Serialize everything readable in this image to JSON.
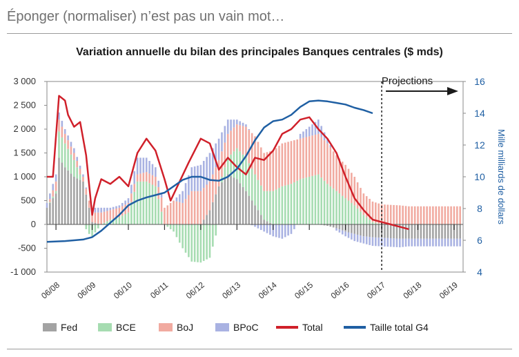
{
  "page": {
    "heading": "Éponger (normaliser) n’est pas un vain mot…"
  },
  "chart_data": {
    "type": "bar",
    "title": "Variation annuelle du bilan des principales Banques centrales ($ mds)",
    "annotation": "Projections",
    "x_ticks": [
      "06/08",
      "06/09",
      "06/10",
      "06/11",
      "06/12",
      "06/13",
      "06/14",
      "06/15",
      "06/16",
      "06/17",
      "06/18",
      "06/19"
    ],
    "y_left": {
      "ticks": [
        "3 000",
        "2 500",
        "2 000",
        "1 500",
        "1 000",
        "500",
        "0",
        "-500",
        "-1 000"
      ],
      "range": [
        -1000,
        3000
      ]
    },
    "y_right": {
      "label": "Mille milliards de dollars",
      "ticks": [
        "16",
        "14",
        "12",
        "10",
        "8",
        "6",
        "4"
      ],
      "range": [
        4,
        16
      ]
    },
    "projection_start": "06/17",
    "colors": {
      "Fed": "#a3a3a3",
      "BCE": "#a6dcb1",
      "BoJ": "#f1aaa0",
      "BPoC": "#a9b2e2",
      "Total": "#d0202a",
      "Taille total G4": "#1f5fa3"
    },
    "series": [
      {
        "name": "Fed",
        "kind": "bar",
        "points": [
          [
            0,
            350
          ],
          [
            3,
            650
          ],
          [
            4,
            1400
          ],
          [
            6,
            1200
          ],
          [
            9,
            1000
          ],
          [
            12,
            900
          ],
          [
            14,
            350
          ],
          [
            15,
            50
          ],
          [
            18,
            0
          ],
          [
            21,
            0
          ],
          [
            24,
            0
          ],
          [
            27,
            -10
          ],
          [
            30,
            0
          ],
          [
            33,
            0
          ],
          [
            36,
            0
          ],
          [
            39,
            0
          ],
          [
            42,
            0
          ],
          [
            45,
            0
          ],
          [
            48,
            0
          ],
          [
            51,
            0
          ],
          [
            54,
            300
          ],
          [
            57,
            800
          ],
          [
            60,
            1050
          ],
          [
            63,
            950
          ],
          [
            66,
            700
          ],
          [
            69,
            400
          ],
          [
            72,
            100
          ],
          [
            75,
            0
          ],
          [
            78,
            0
          ],
          [
            81,
            0
          ],
          [
            84,
            0
          ],
          [
            87,
            0
          ],
          [
            90,
            0
          ],
          [
            93,
            -30
          ],
          [
            96,
            -80
          ],
          [
            99,
            -150
          ],
          [
            102,
            -200
          ],
          [
            105,
            -250
          ],
          [
            108,
            -270
          ],
          [
            111,
            -280
          ],
          [
            114,
            -290
          ],
          [
            117,
            -300
          ],
          [
            120,
            -300
          ]
        ]
      },
      {
        "name": "BCE",
        "kind": "bar",
        "points": [
          [
            0,
            0
          ],
          [
            3,
            50
          ],
          [
            4,
            550
          ],
          [
            6,
            500
          ],
          [
            9,
            350
          ],
          [
            12,
            0
          ],
          [
            14,
            -200
          ],
          [
            15,
            -250
          ],
          [
            18,
            0
          ],
          [
            21,
            100
          ],
          [
            24,
            150
          ],
          [
            27,
            250
          ],
          [
            30,
            900
          ],
          [
            33,
            900
          ],
          [
            36,
            800
          ],
          [
            39,
            0
          ],
          [
            42,
            -150
          ],
          [
            45,
            -500
          ],
          [
            48,
            -780
          ],
          [
            51,
            -800
          ],
          [
            54,
            -700
          ],
          [
            57,
            0
          ],
          [
            60,
            350
          ],
          [
            63,
            650
          ],
          [
            66,
            700
          ],
          [
            69,
            650
          ],
          [
            72,
            600
          ],
          [
            75,
            700
          ],
          [
            78,
            800
          ],
          [
            81,
            850
          ],
          [
            84,
            950
          ],
          [
            87,
            1000
          ],
          [
            90,
            1050
          ],
          [
            93,
            850
          ],
          [
            96,
            700
          ],
          [
            99,
            550
          ],
          [
            102,
            400
          ],
          [
            105,
            200
          ],
          [
            108,
            50
          ],
          [
            111,
            0
          ],
          [
            114,
            0
          ],
          [
            117,
            0
          ],
          [
            120,
            0
          ]
        ]
      },
      {
        "name": "BoJ",
        "kind": "bar",
        "points": [
          [
            0,
            0
          ],
          [
            3,
            200
          ],
          [
            4,
            250
          ],
          [
            6,
            200
          ],
          [
            9,
            150
          ],
          [
            12,
            100
          ],
          [
            14,
            150
          ],
          [
            15,
            200
          ],
          [
            18,
            250
          ],
          [
            21,
            200
          ],
          [
            24,
            200
          ],
          [
            27,
            200
          ],
          [
            30,
            150
          ],
          [
            33,
            200
          ],
          [
            36,
            200
          ],
          [
            39,
            350
          ],
          [
            42,
            500
          ],
          [
            45,
            450
          ],
          [
            48,
            700
          ],
          [
            51,
            700
          ],
          [
            54,
            600
          ],
          [
            57,
            550
          ],
          [
            60,
            500
          ],
          [
            63,
            500
          ],
          [
            66,
            650
          ],
          [
            69,
            800
          ],
          [
            72,
            800
          ],
          [
            75,
            850
          ],
          [
            78,
            900
          ],
          [
            81,
            900
          ],
          [
            84,
            850
          ],
          [
            87,
            850
          ],
          [
            90,
            850
          ],
          [
            93,
            850
          ],
          [
            96,
            750
          ],
          [
            99,
            700
          ],
          [
            102,
            600
          ],
          [
            105,
            450
          ],
          [
            108,
            430
          ],
          [
            111,
            420
          ],
          [
            114,
            410
          ],
          [
            117,
            400
          ],
          [
            120,
            380
          ]
        ]
      },
      {
        "name": "BPoC",
        "kind": "bar",
        "points": [
          [
            0,
            100
          ],
          [
            3,
            150
          ],
          [
            4,
            150
          ],
          [
            6,
            100
          ],
          [
            9,
            100
          ],
          [
            12,
            50
          ],
          [
            14,
            0
          ],
          [
            15,
            100
          ],
          [
            18,
            100
          ],
          [
            21,
            50
          ],
          [
            24,
            50
          ],
          [
            27,
            100
          ],
          [
            30,
            350
          ],
          [
            33,
            300
          ],
          [
            36,
            200
          ],
          [
            39,
            0
          ],
          [
            42,
            0
          ],
          [
            45,
            250
          ],
          [
            48,
            500
          ],
          [
            51,
            550
          ],
          [
            54,
            600
          ],
          [
            57,
            450
          ],
          [
            60,
            300
          ],
          [
            63,
            100
          ],
          [
            66,
            50
          ],
          [
            69,
            -50
          ],
          [
            72,
            -150
          ],
          [
            75,
            -250
          ],
          [
            78,
            -300
          ],
          [
            81,
            -200
          ],
          [
            84,
            100
          ],
          [
            87,
            200
          ],
          [
            90,
            300
          ],
          [
            93,
            100
          ],
          [
            96,
            -50
          ],
          [
            99,
            -100
          ],
          [
            102,
            -150
          ],
          [
            105,
            -150
          ],
          [
            108,
            -180
          ],
          [
            111,
            -180
          ],
          [
            114,
            -180
          ],
          [
            117,
            -180
          ],
          [
            120,
            -160
          ]
        ]
      },
      {
        "name": "Total",
        "kind": "line",
        "points": [
          [
            0,
            1000
          ],
          [
            2,
            1000
          ],
          [
            4,
            2700
          ],
          [
            6,
            2600
          ],
          [
            7,
            2300
          ],
          [
            9,
            2050
          ],
          [
            11,
            2150
          ],
          [
            13,
            1450
          ],
          [
            15,
            200
          ],
          [
            16,
            550
          ],
          [
            18,
            950
          ],
          [
            21,
            850
          ],
          [
            24,
            1000
          ],
          [
            27,
            800
          ],
          [
            30,
            1500
          ],
          [
            33,
            1800
          ],
          [
            36,
            1550
          ],
          [
            39,
            950
          ],
          [
            41,
            500
          ],
          [
            44,
            900
          ],
          [
            47,
            1300
          ],
          [
            51,
            1800
          ],
          [
            54,
            1700
          ],
          [
            57,
            1150
          ],
          [
            60,
            1400
          ],
          [
            63,
            1200
          ],
          [
            66,
            1050
          ],
          [
            69,
            1400
          ],
          [
            72,
            1350
          ],
          [
            75,
            1550
          ],
          [
            78,
            1900
          ],
          [
            81,
            2000
          ],
          [
            84,
            2200
          ],
          [
            87,
            2250
          ],
          [
            90,
            2000
          ],
          [
            93,
            1800
          ],
          [
            96,
            1500
          ],
          [
            99,
            1000
          ],
          [
            102,
            550
          ],
          [
            105,
            300
          ],
          [
            108,
            100
          ],
          [
            111,
            50
          ],
          [
            114,
            0
          ],
          [
            117,
            -50
          ],
          [
            120,
            -100
          ]
        ]
      },
      {
        "name": "Taille total G4",
        "kind": "line",
        "axis": "right",
        "points": [
          [
            0,
            5.9
          ],
          [
            6,
            5.95
          ],
          [
            12,
            6.05
          ],
          [
            15,
            6.2
          ],
          [
            18,
            6.6
          ],
          [
            21,
            7.1
          ],
          [
            24,
            7.6
          ],
          [
            27,
            8.2
          ],
          [
            30,
            8.5
          ],
          [
            33,
            8.7
          ],
          [
            36,
            8.85
          ],
          [
            39,
            9.0
          ],
          [
            42,
            9.4
          ],
          [
            45,
            9.8
          ],
          [
            48,
            10.0
          ],
          [
            51,
            10.0
          ],
          [
            54,
            9.8
          ],
          [
            57,
            9.75
          ],
          [
            60,
            10.0
          ],
          [
            63,
            10.5
          ],
          [
            66,
            11.3
          ],
          [
            69,
            12.3
          ],
          [
            72,
            13.1
          ],
          [
            75,
            13.5
          ],
          [
            78,
            13.6
          ],
          [
            81,
            13.9
          ],
          [
            84,
            14.4
          ],
          [
            87,
            14.75
          ],
          [
            90,
            14.8
          ],
          [
            93,
            14.75
          ],
          [
            96,
            14.65
          ],
          [
            99,
            14.55
          ],
          [
            102,
            14.35
          ],
          [
            105,
            14.2
          ],
          [
            108,
            14.0
          ]
        ]
      }
    ]
  }
}
